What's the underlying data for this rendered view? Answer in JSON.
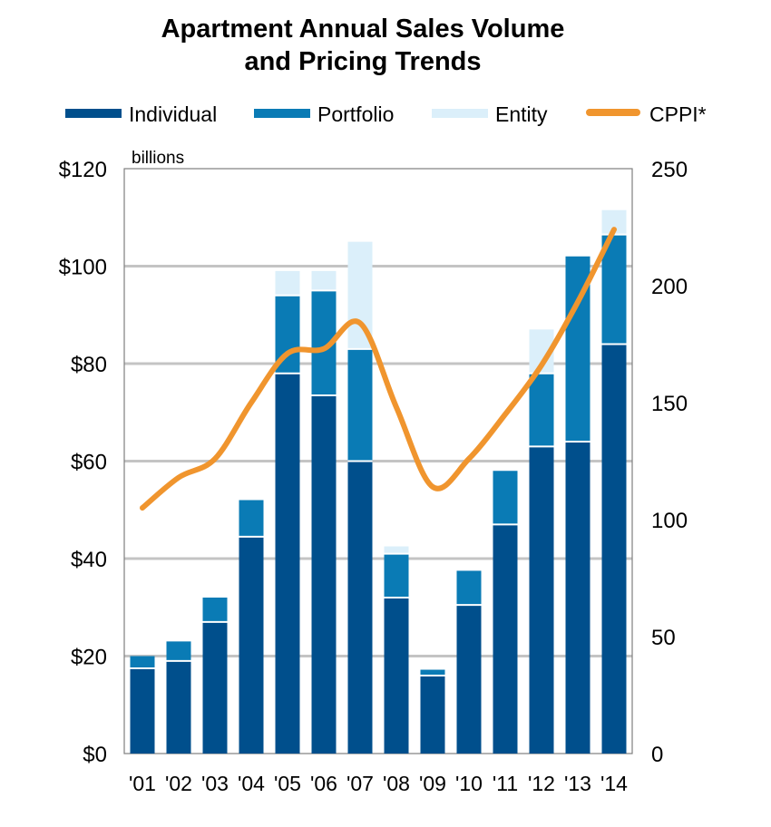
{
  "chart_data": {
    "type": "bar",
    "stacked": true,
    "title_lines": [
      "Apartment Annual Sales Volume",
      "and Pricing Trends"
    ],
    "y_unit_label": "billions",
    "categories": [
      "'01",
      "'02",
      "'03",
      "'04",
      "'05",
      "'06",
      "'07",
      "'08",
      "'09",
      "'10",
      "'11",
      "'12",
      "'13",
      "'14"
    ],
    "series": [
      {
        "name": "Individual",
        "color": "#004f8c",
        "values": [
          17.5,
          19,
          27,
          44.5,
          78,
          73.5,
          60,
          32,
          16,
          30.5,
          47,
          63,
          64,
          84
        ]
      },
      {
        "name": "Portfolio",
        "color": "#0a7bb5",
        "values": [
          2.5,
          4,
          5,
          7.5,
          16,
          21.5,
          23,
          9,
          1.2,
          7,
          11,
          15,
          38,
          22.5
        ]
      },
      {
        "name": "Entity",
        "color": "#dbeffa",
        "values": [
          0,
          0,
          0,
          0,
          5,
          4,
          22,
          1.5,
          0,
          0,
          0,
          9,
          0,
          5
        ]
      }
    ],
    "line_series": {
      "name": "CPPI*",
      "color": "#f0952e",
      "axis": "right",
      "values": [
        105,
        118,
        126,
        150,
        171,
        173,
        184,
        148,
        114,
        126,
        145,
        166,
        193,
        224
      ]
    },
    "y_left": {
      "min": 0,
      "max": 120,
      "step": 20,
      "tick_labels": [
        "$0",
        "$20",
        "$40",
        "$60",
        "$80",
        "$100",
        "$120"
      ]
    },
    "y_right": {
      "min": 0,
      "max": 250,
      "step": 50,
      "tick_labels": [
        "0",
        "50",
        "100",
        "150",
        "200",
        "250"
      ]
    },
    "gridlines": true,
    "legend_position": "top"
  }
}
